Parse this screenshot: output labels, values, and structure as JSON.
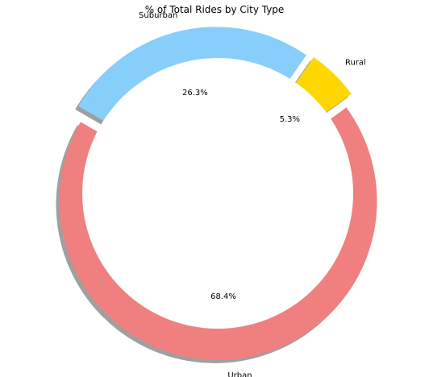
{
  "chart_data": {
    "type": "pie",
    "title": "% of Total Rides by City Type",
    "slices": [
      {
        "label": "Urban",
        "value": 68.4,
        "pct_label": "68.4%",
        "color": "#F08080",
        "explode": 0.05
      },
      {
        "label": "Rural",
        "value": 5.3,
        "pct_label": "5.3%",
        "color": "#FFD700",
        "explode": 0.05
      },
      {
        "label": "Suburban",
        "value": 26.3,
        "pct_label": "26.3%",
        "color": "#87CEFA",
        "explode": 0.05
      }
    ],
    "start_angle_deg": 150,
    "direction": "counterclockwise",
    "shadow": true,
    "donut": true
  }
}
